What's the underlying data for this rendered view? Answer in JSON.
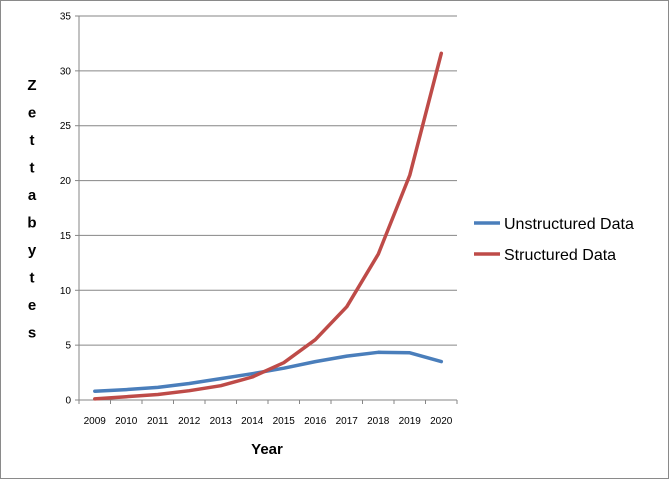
{
  "chart_data": {
    "type": "line",
    "title": "",
    "xlabel": "Year",
    "ylabel": "Zettabytes",
    "ylabel_letters": [
      "Z",
      "e",
      "t",
      "t",
      "a",
      "b",
      "y",
      "t",
      "e",
      "s"
    ],
    "categories": [
      "2009",
      "2010",
      "2011",
      "2012",
      "2013",
      "2014",
      "2015",
      "2016",
      "2017",
      "2018",
      "2019",
      "2020"
    ],
    "ylim": [
      0,
      35
    ],
    "yticks": [
      0,
      5,
      10,
      15,
      20,
      25,
      30,
      35
    ],
    "ytick_labels": [
      "0",
      "5",
      "10",
      "15",
      "20",
      "25",
      "30",
      "35"
    ],
    "grid": true,
    "legend_position": "right",
    "series": [
      {
        "name": "Unstructured Data",
        "color": "#4a7ebb",
        "values": [
          0.8,
          0.95,
          1.15,
          1.5,
          1.95,
          2.4,
          2.9,
          3.5,
          4.0,
          4.35,
          4.3,
          3.5
        ]
      },
      {
        "name": "Structured Data",
        "color": "#be4b48",
        "values": [
          0.1,
          0.3,
          0.5,
          0.85,
          1.3,
          2.1,
          3.4,
          5.5,
          8.5,
          13.3,
          20.5,
          31.6
        ]
      }
    ]
  }
}
